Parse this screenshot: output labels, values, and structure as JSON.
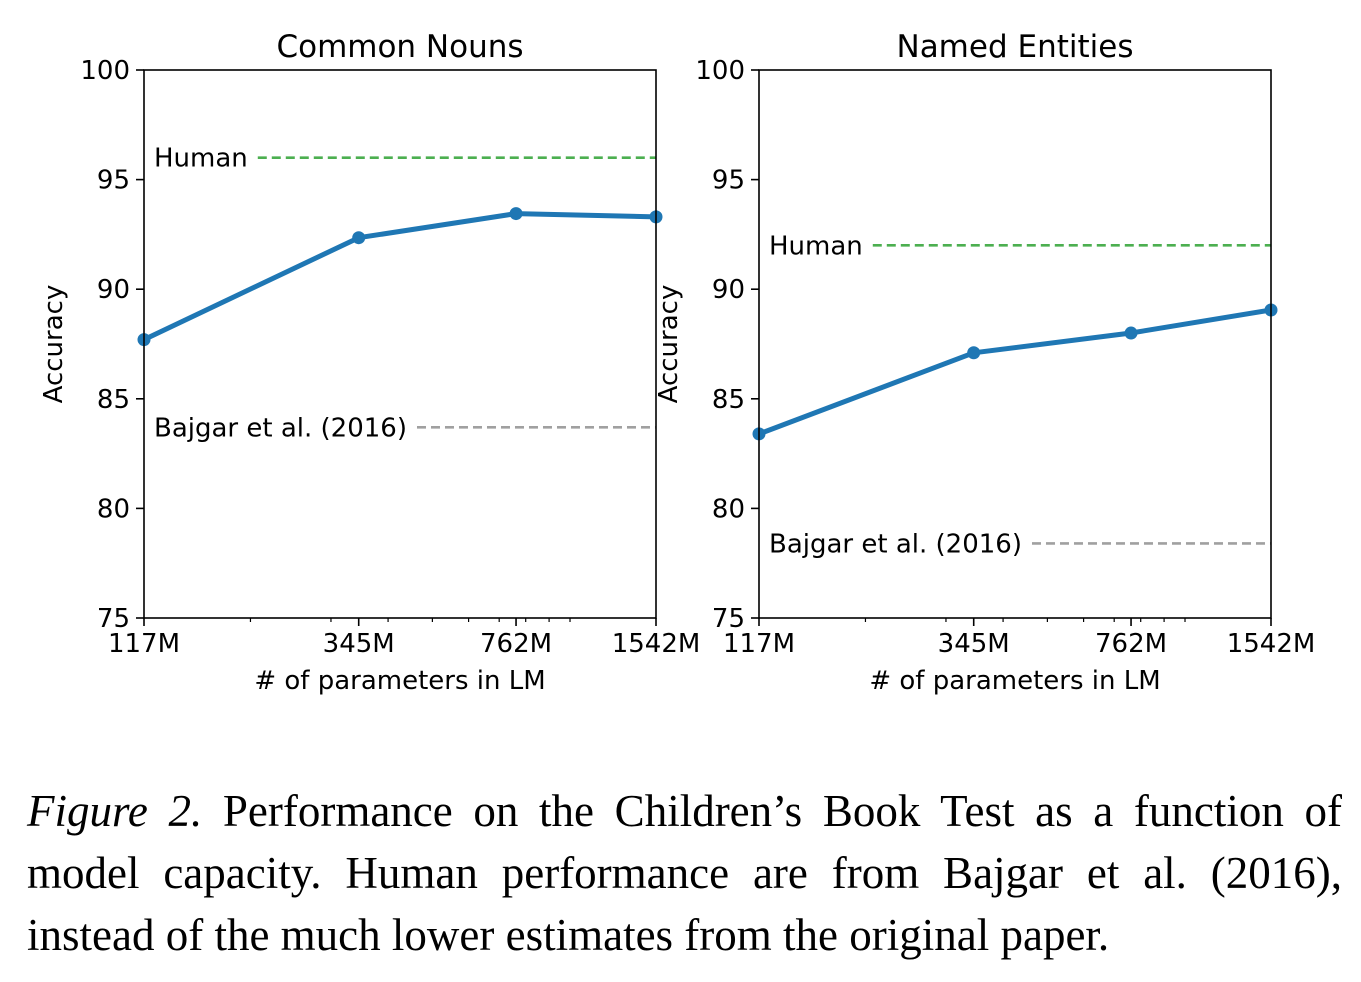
{
  "chart_data": [
    {
      "type": "line",
      "title": "Common Nouns",
      "xlabel": "# of parameters in LM",
      "ylabel": "Accuracy",
      "x_scale": "log",
      "x": [
        117,
        345,
        762,
        1542
      ],
      "x_tick_labels": [
        "117M",
        "345M",
        "762M",
        "1542M"
      ],
      "ylim": [
        75,
        100
      ],
      "y_ticks": [
        "75",
        "80",
        "85",
        "90",
        "95",
        "100"
      ],
      "series": [
        {
          "values": [
            87.7,
            92.35,
            93.45,
            93.3
          ],
          "color": "#1f77b4"
        }
      ],
      "reference_lines": [
        {
          "label": "Human",
          "value": 96.0,
          "color": "#4caf50"
        },
        {
          "label": "Bajgar et al. (2016)",
          "value": 83.7,
          "color": "#a0a0a0"
        }
      ]
    },
    {
      "type": "line",
      "title": "Named Entities",
      "xlabel": "# of parameters in LM",
      "ylabel": "Accuracy",
      "x_scale": "log",
      "x": [
        117,
        345,
        762,
        1542
      ],
      "x_tick_labels": [
        "117M",
        "345M",
        "762M",
        "1542M"
      ],
      "ylim": [
        75,
        100
      ],
      "y_ticks": [
        "75",
        "80",
        "85",
        "90",
        "95",
        "100"
      ],
      "series": [
        {
          "values": [
            83.4,
            87.1,
            88.0,
            89.05
          ],
          "color": "#1f77b4"
        }
      ],
      "reference_lines": [
        {
          "label": "Human",
          "value": 92.0,
          "color": "#4caf50"
        },
        {
          "label": "Bajgar et al. (2016)",
          "value": 78.4,
          "color": "#a0a0a0"
        }
      ]
    }
  ],
  "caption": {
    "label": "Figure 2.",
    "text": "Performance on the Children’s Book Test as a function of model capacity. Human performance are from Bajgar et al. (2016), instead of the much lower estimates from the original paper."
  }
}
